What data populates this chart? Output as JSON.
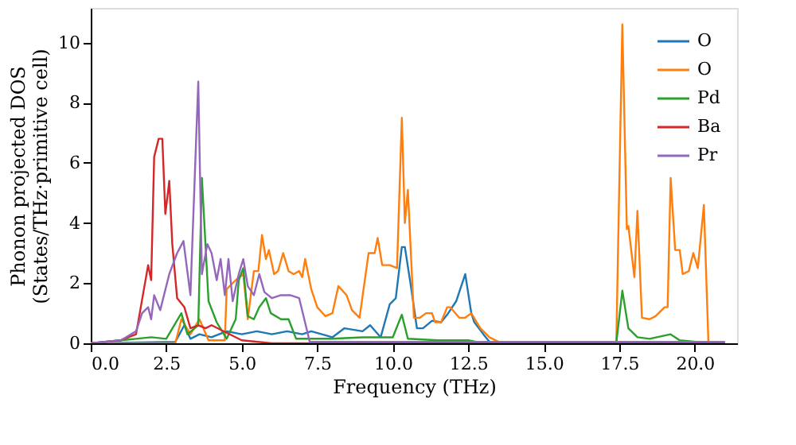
{
  "chart_data": {
    "type": "line",
    "xlabel": "Frequency (THz)",
    "ylabel": "Phonon projected DOS\n(States/THz·primitive cell)",
    "xlim": [
      0,
      21.4
    ],
    "ylim": [
      0,
      11.15
    ],
    "xticks": [
      {
        "value": 0,
        "label": "0.0"
      },
      2.5,
      {
        "value": 5,
        "label": "5.0"
      },
      7.5,
      {
        "value": 10,
        "label": "10.0"
      },
      12.5,
      {
        "value": 15,
        "label": "15.0"
      },
      17.5,
      {
        "value": 20,
        "label": "20.0"
      }
    ],
    "yticks": [
      0,
      2,
      4,
      6,
      8,
      10
    ],
    "grid": false,
    "legend": "top right",
    "line_style": "solid",
    "marker": "none",
    "series": [
      {
        "name": "O",
        "color": "#1f77b4",
        "x": [
          0,
          2.8,
          3.1,
          3.3,
          3.6,
          4.0,
          4.5,
          5.0,
          5.5,
          6.0,
          6.5,
          7.0,
          7.3,
          8.0,
          8.4,
          9.0,
          9.25,
          9.6,
          9.9,
          10.1,
          10.3,
          10.4,
          10.6,
          10.8,
          11.0,
          11.3,
          11.6,
          11.8,
          12.1,
          12.4,
          12.6,
          12.7,
          13.0,
          13.2,
          13.5,
          21
        ],
        "values": [
          0,
          0.05,
          0.6,
          0.15,
          0.3,
          0.2,
          0.4,
          0.3,
          0.4,
          0.3,
          0.4,
          0.3,
          0.4,
          0.2,
          0.5,
          0.4,
          0.6,
          0.2,
          1.3,
          1.5,
          3.2,
          3.2,
          1.9,
          0.5,
          0.5,
          0.75,
          0.7,
          0.95,
          1.4,
          2.3,
          1.0,
          0.7,
          0.3,
          0.05,
          0,
          0
        ]
      },
      {
        "name": "O",
        "color": "#ff7f0e",
        "x": [
          0,
          2.8,
          3.0,
          3.3,
          3.6,
          3.9,
          4.44,
          4.5,
          4.8,
          5.05,
          5.2,
          5.4,
          5.55,
          5.67,
          5.8,
          5.9,
          6.07,
          6.2,
          6.37,
          6.55,
          6.72,
          6.9,
          7.0,
          7.1,
          7.3,
          7.5,
          7.77,
          8.0,
          8.2,
          8.47,
          8.65,
          8.9,
          9.2,
          9.4,
          9.5,
          9.65,
          9.9,
          10.14,
          10.3,
          10.4,
          10.5,
          10.7,
          10.9,
          11.1,
          11.3,
          11.4,
          11.6,
          11.8,
          11.9,
          12.2,
          12.4,
          12.6,
          12.9,
          13.2,
          13.5,
          17.4,
          17.6,
          17.75,
          17.8,
          18.0,
          18.1,
          18.25,
          18.5,
          18.7,
          19.0,
          19.1,
          19.2,
          19.35,
          19.5,
          19.6,
          19.8,
          19.95,
          20.1,
          20.3,
          20.45,
          20.6
        ],
        "values": [
          0,
          0,
          0.8,
          0.3,
          0.8,
          0.1,
          0.1,
          1.8,
          2.1,
          2.3,
          0.8,
          2.4,
          2.4,
          3.6,
          2.8,
          3.1,
          2.3,
          2.4,
          3.0,
          2.4,
          2.3,
          2.4,
          2.2,
          2.8,
          1.8,
          1.2,
          0.9,
          1.0,
          1.9,
          1.6,
          1.1,
          0.85,
          3.0,
          3.0,
          3.5,
          2.6,
          2.6,
          2.5,
          7.5,
          4.0,
          5.1,
          0.85,
          0.85,
          1.0,
          1.0,
          0.7,
          0.7,
          1.2,
          1.2,
          0.85,
          0.85,
          1.0,
          0.5,
          0.2,
          0.05,
          0,
          10.6,
          3.8,
          3.9,
          2.2,
          4.4,
          0.85,
          0.8,
          0.9,
          1.2,
          1.2,
          5.5,
          3.1,
          3.1,
          2.3,
          2.4,
          3.0,
          2.5,
          4.6,
          0.05,
          0
        ]
      },
      {
        "name": "Pd",
        "color": "#2ca02c",
        "x": [
          0,
          1.0,
          1.5,
          2.0,
          2.5,
          3.0,
          3.2,
          3.56,
          3.68,
          3.9,
          4.17,
          4.5,
          4.8,
          4.9,
          5.05,
          5.2,
          5.4,
          5.58,
          5.8,
          5.96,
          6.3,
          6.55,
          6.8,
          8.0,
          9.0,
          10.0,
          10.3,
          10.5,
          11.5,
          12.5,
          13.0,
          17.4,
          17.6,
          17.8,
          18.1,
          18.5,
          19.2,
          19.5,
          20.5
        ],
        "values": [
          0,
          0.1,
          0.15,
          0.2,
          0.15,
          1.0,
          0.3,
          0.6,
          5.5,
          1.4,
          0.7,
          0.15,
          0.8,
          2.1,
          2.5,
          0.9,
          0.8,
          1.2,
          1.5,
          1.0,
          0.8,
          0.8,
          0.15,
          0.15,
          0.2,
          0.2,
          0.95,
          0.15,
          0.1,
          0.1,
          0,
          0,
          1.75,
          0.5,
          0.2,
          0.15,
          0.3,
          0.1,
          0
        ]
      },
      {
        "name": "Ba",
        "color": "#d62728",
        "x": [
          0,
          1.0,
          1.5,
          1.9,
          2.0,
          2.1,
          2.25,
          2.37,
          2.47,
          2.6,
          2.7,
          2.86,
          3.1,
          3.3,
          3.56,
          3.8,
          4.0,
          5.0,
          6.0,
          21
        ],
        "values": [
          0,
          0.1,
          0.3,
          2.6,
          2.1,
          6.2,
          6.8,
          6.8,
          4.3,
          5.4,
          3.3,
          1.5,
          1.2,
          0.5,
          0.6,
          0.5,
          0.6,
          0.1,
          0,
          0
        ]
      },
      {
        "name": "Pr",
        "color": "#9467bd",
        "x": [
          0,
          1.0,
          1.5,
          1.7,
          1.9,
          2.0,
          2.1,
          2.3,
          2.6,
          2.86,
          3.07,
          3.3,
          3.56,
          3.68,
          3.86,
          4.0,
          4.17,
          4.3,
          4.44,
          4.56,
          4.7,
          4.9,
          5.05,
          5.2,
          5.4,
          5.58,
          5.75,
          6.0,
          6.3,
          6.6,
          6.9,
          7.07,
          7.25,
          21
        ],
        "values": [
          0,
          0.1,
          0.4,
          1.0,
          1.2,
          0.8,
          1.6,
          1.1,
          2.3,
          3.0,
          3.4,
          1.6,
          8.7,
          2.3,
          3.3,
          3.0,
          2.1,
          2.8,
          1.6,
          2.8,
          1.4,
          2.3,
          2.8,
          1.9,
          1.6,
          2.3,
          1.7,
          1.5,
          1.6,
          1.6,
          1.5,
          0.8,
          0.05,
          0.05
        ]
      }
    ]
  }
}
